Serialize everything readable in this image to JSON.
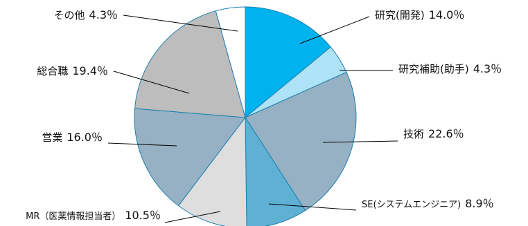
{
  "chart_data": {
    "type": "pie",
    "slices": [
      {
        "label": "研究(開発)",
        "value": 14.0,
        "display": "14.0％",
        "color": "#00b3ee"
      },
      {
        "label": "研究補助(助手)",
        "value": 4.3,
        "display": "4.3％",
        "color": "#aee2f6"
      },
      {
        "label": "技術",
        "value": 22.6,
        "display": "22.6％",
        "color": "#95b1c3"
      },
      {
        "label": "SE(システムエンジニア)",
        "value": 8.9,
        "display": "8.9％",
        "color": "#5fb1d4"
      },
      {
        "label": "MR（医薬情報担当者）",
        "value": 10.5,
        "display": "10.5％",
        "color": "#dedede"
      },
      {
        "label": "営業",
        "value": 16.0,
        "display": "16.0％",
        "color": "#95b1c3"
      },
      {
        "label": "総合職",
        "value": 19.4,
        "display": "19.4％",
        "color": "#bdbdbd"
      },
      {
        "label": "その他",
        "value": 4.3,
        "display": "4.3％",
        "color": "#ffffff"
      }
    ],
    "start": "12 o'clock",
    "direction": "clockwise",
    "slice_border_color": "#1f7fb0"
  }
}
